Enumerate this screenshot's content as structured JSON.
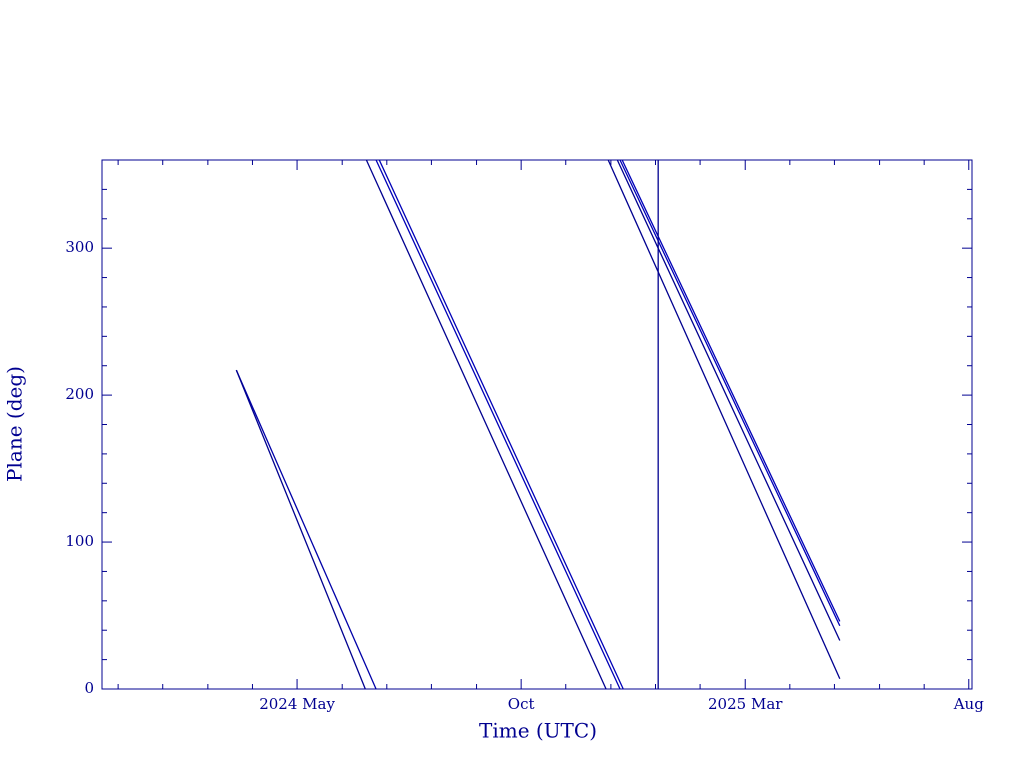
{
  "chart_data": {
    "type": "line",
    "xlabel": "Time (UTC)",
    "ylabel": "Plane (deg)",
    "xlim": [
      2023.97,
      2025.589
    ],
    "ylim": [
      0,
      360
    ],
    "xticks": [
      {
        "value": 2024.333,
        "label": "2024 May"
      },
      {
        "value": 2024.75,
        "label": "Oct"
      },
      {
        "value": 2025.167,
        "label": "2025 Mar"
      },
      {
        "value": 2025.583,
        "label": "Aug"
      }
    ],
    "xminor": [
      2024.0,
      2024.083,
      2024.167,
      2024.25,
      2024.417,
      2024.5,
      2024.583,
      2024.667,
      2024.833,
      2024.917,
      2025.0,
      2025.083,
      2025.25,
      2025.333,
      2025.417,
      2025.5
    ],
    "yticks": [
      0,
      100,
      200,
      300
    ],
    "yminor": [
      20,
      40,
      60,
      80,
      120,
      140,
      160,
      180,
      220,
      240,
      260,
      280,
      320,
      340
    ],
    "series": [
      {
        "color": "#0000a8",
        "x": [
          2024.22,
          2024.48
        ],
        "values": [
          217,
          0
        ]
      },
      {
        "color": "#000090",
        "x": [
          2024.22,
          2024.46
        ],
        "values": [
          217,
          0
        ]
      },
      {
        "color": "#000090",
        "x": [
          2024.462,
          2024.908
        ],
        "values": [
          360,
          0
        ]
      },
      {
        "color": "#0000b8",
        "x": [
          2024.48,
          2024.934
        ],
        "values": [
          360,
          0
        ]
      },
      {
        "color": "#0000b8",
        "x": [
          2024.486,
          2024.94
        ],
        "values": [
          360,
          0
        ]
      },
      {
        "color": "#000090",
        "x": [
          2024.912,
          2025.343
        ],
        "values": [
          360,
          7
        ]
      },
      {
        "color": "#000090",
        "x": [
          2024.929,
          2025.343
        ],
        "values": [
          360,
          33
        ]
      },
      {
        "color": "#0000b8",
        "x": [
          2024.934,
          2025.343
        ],
        "values": [
          360,
          43
        ]
      },
      {
        "color": "#0000b8",
        "x": [
          2024.938,
          2025.343
        ],
        "values": [
          360,
          46
        ]
      },
      {
        "color": "#000090",
        "x": [
          2025.005,
          2025.005
        ],
        "values": [
          0,
          360
        ]
      }
    ]
  }
}
